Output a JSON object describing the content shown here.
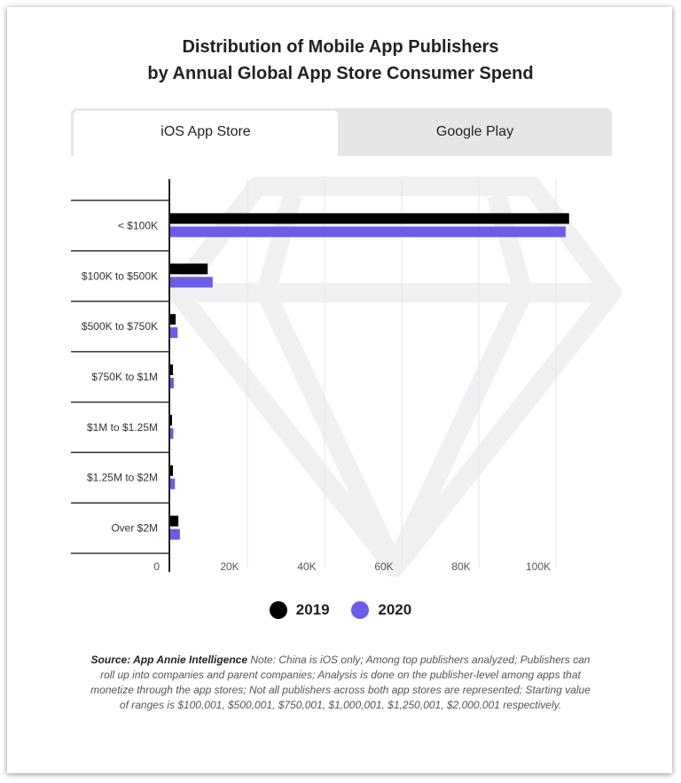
{
  "title_lines": [
    "Distribution of Mobile App Publishers",
    "by Annual Global App Store Consumer Spend"
  ],
  "tabs": [
    {
      "label": "iOS App Store",
      "active": true
    },
    {
      "label": "Google Play",
      "active": false
    }
  ],
  "colors": {
    "2019": "#000000",
    "2020": "#6c5ce7",
    "grid": "#e4e4ee",
    "tab_inactive": "#e6e6e6"
  },
  "chart_data": {
    "type": "bar",
    "orientation": "horizontal",
    "title": "Distribution of Mobile App Publishers by Annual Global App Store Consumer Spend",
    "categories": [
      "< $100K",
      "$100K to $500K",
      "$500K to $750K",
      "$750K to $1M",
      "$1M to $1.25M",
      "$1.25M to $2M",
      "Over $2M"
    ],
    "series": [
      {
        "name": "2019",
        "values": [
          103400,
          9700,
          1400,
          700,
          400,
          700,
          2100
        ]
      },
      {
        "name": "2020",
        "values": [
          102500,
          11000,
          1900,
          900,
          800,
          1200,
          2500
        ]
      }
    ],
    "xlim": [
      0,
      105000
    ],
    "xticks": [
      0,
      20000,
      40000,
      60000,
      80000,
      100000
    ],
    "xtick_labels": [
      "0",
      "20K",
      "40K",
      "60K",
      "80K",
      "100K"
    ],
    "grid": true,
    "legend_position": "bottom"
  },
  "legend": [
    {
      "label": "2019"
    },
    {
      "label": "2020"
    }
  ],
  "footnote": {
    "source": "Source: App Annie Intelligence",
    "note": " Note: China is iOS only; Among top publishers analyzed; Publishers can roll up into companies and parent companies; Analysis is done on the publisher-level among apps that monetize through the app stores; Not all publishers across both app stores are represented; Starting value of ranges is $100,001, $500,001, $750,001, $1,000,001, $1,250,001, $2,000,001 respectively."
  }
}
